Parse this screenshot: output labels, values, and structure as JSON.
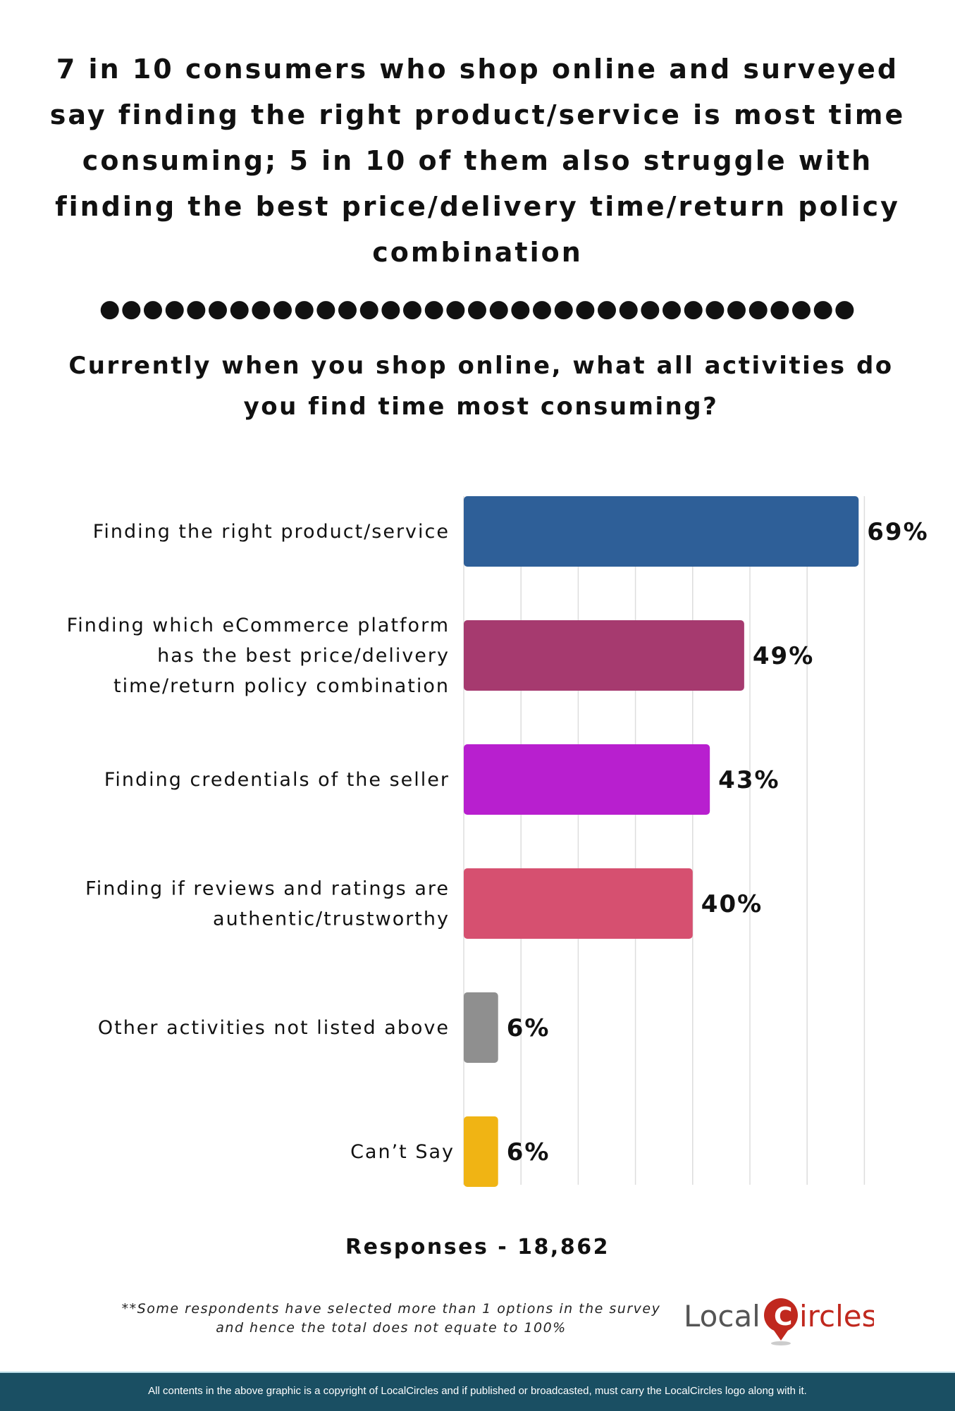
{
  "title": "7 in 10 consumers who shop online and surveyed say finding the right product/service is most time consuming; 5 in 10 of them also struggle with finding the best price/delivery time/return policy combination",
  "divider": "●●●●●●●●●●●●●●●●●●●●●●●●●●●●●●●●●●●",
  "question": "Currently when you shop online, what all activities do you find time most consuming?",
  "chart_data": {
    "type": "bar",
    "orientation": "horizontal",
    "categories": [
      [
        "Finding the right product/service"
      ],
      [
        "Finding which eCommerce platform",
        "has the best price/delivery",
        "time/return policy combination"
      ],
      [
        "Finding credentials of the seller"
      ],
      [
        "Finding if reviews and ratings are",
        "authentic/trustworthy"
      ],
      [
        "Other activities not listed above"
      ],
      [
        "Can’t Say"
      ]
    ],
    "values": [
      69,
      49,
      43,
      40,
      6,
      6
    ],
    "value_labels": [
      "69%",
      "49%",
      "43%",
      "40%",
      "6%",
      "6%"
    ],
    "colors": [
      "#2e5f98",
      "#a63a6f",
      "#b81fcf",
      "#d65070",
      "#8f8f8f",
      "#f0b414"
    ],
    "xlim": [
      0,
      70
    ],
    "grid": true,
    "grid_step": 10,
    "grid_color": "#dddddd"
  },
  "responses": "Responses - 18,862",
  "footnote": [
    "**Some respondents have selected more than 1 options in the survey",
    "and hence the total does not equate to 100%"
  ],
  "logo": {
    "text_left": "Local",
    "text_right": "ircles",
    "colors": {
      "grey": "#555555",
      "red": "#c0281e"
    }
  },
  "footer": "All contents in the above graphic is a copyright of LocalCircles and if published or broadcasted, must carry the LocalCircles logo along with it.",
  "colors": {
    "footer_bg": "#1a4f63"
  }
}
